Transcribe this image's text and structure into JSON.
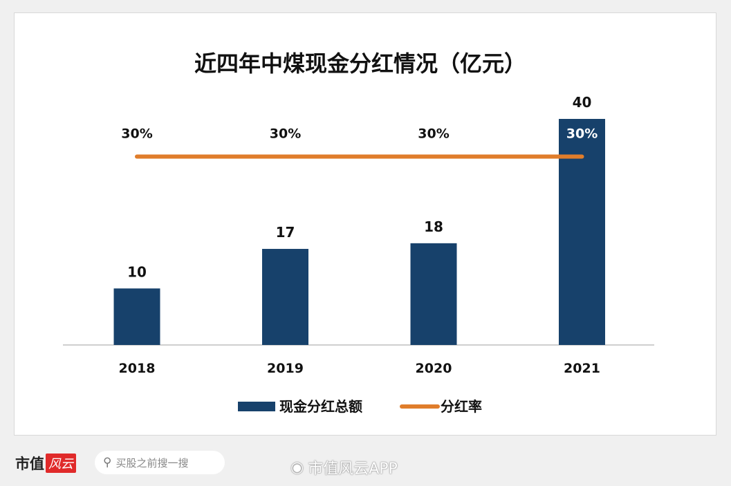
{
  "chart_data": {
    "type": "bar",
    "title": "近四年中煤现金分红情况（亿元）",
    "categories": [
      "2018",
      "2019",
      "2020",
      "2021"
    ],
    "series": [
      {
        "name": "现金分红总额",
        "type": "bar",
        "values": [
          10,
          17,
          18,
          40
        ],
        "labels": [
          "10",
          "17",
          "18",
          "40"
        ],
        "color": "#17416b"
      },
      {
        "name": "分红率",
        "type": "line",
        "values": [
          0.3,
          0.3,
          0.3,
          0.3
        ],
        "labels": [
          "30%",
          "30%",
          "30%",
          "30%"
        ],
        "color": "#e07d2b"
      }
    ],
    "ylim": [
      0,
      40
    ],
    "ylim_secondary": [
      0,
      0.36
    ],
    "grid": false,
    "legend": "bottom"
  },
  "footer": {
    "brand": "市值",
    "brand_red": "风云",
    "search_placeholder": "买股之前搜一搜",
    "weibo_handle": "市值风云APP"
  }
}
